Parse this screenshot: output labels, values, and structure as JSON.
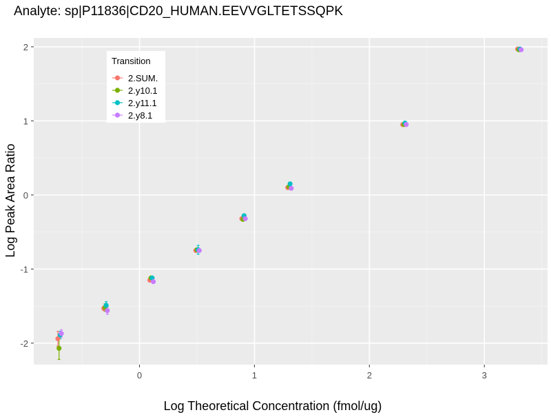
{
  "chart_data": {
    "type": "scatter",
    "title": "Analyte: sp|P11836|CD20_HUMAN.EEVVGLTETSSQPK",
    "xlabel": "Log Theoretical Concentration (fmol/ug)",
    "ylabel": "Log Peak Area Ratio",
    "xlim": [
      -0.92,
      3.55
    ],
    "ylim": [
      -2.29,
      2.12
    ],
    "x_ticks": [
      0,
      1,
      2,
      3
    ],
    "y_ticks": [
      -2,
      -1,
      0,
      1,
      2
    ],
    "x_tick_labels": [
      "0",
      "1",
      "2",
      "3"
    ],
    "y_tick_labels": [
      "-2",
      "-1",
      "0",
      "1",
      "2"
    ],
    "grid": true,
    "legend": {
      "title": "Transition",
      "position": "top-left"
    },
    "series": [
      {
        "name": "2.SUM.",
        "color": "#F8766D",
        "points": [
          {
            "x": -0.71,
            "y": -1.94,
            "err": 0.1
          },
          {
            "x": -0.31,
            "y": -1.53,
            "err": 0.03
          },
          {
            "x": 0.09,
            "y": -1.15,
            "err": 0.02
          },
          {
            "x": 0.49,
            "y": -0.75,
            "err": 0.02
          },
          {
            "x": 0.89,
            "y": -0.32,
            "err": 0.02
          },
          {
            "x": 1.29,
            "y": 0.1,
            "err": 0.02
          },
          {
            "x": 2.29,
            "y": 0.95,
            "err": 0.02
          },
          {
            "x": 3.29,
            "y": 1.97,
            "err": 0.01
          }
        ]
      },
      {
        "name": "2.y10.1",
        "color": "#7CAE00",
        "points": [
          {
            "x": -0.7,
            "y": -2.07,
            "err": 0.15
          },
          {
            "x": -0.3,
            "y": -1.52,
            "err": 0.05
          },
          {
            "x": 0.1,
            "y": -1.12,
            "err": 0.02
          },
          {
            "x": 0.5,
            "y": -0.74,
            "err": 0.02
          },
          {
            "x": 0.9,
            "y": -0.33,
            "err": 0.02
          },
          {
            "x": 1.3,
            "y": 0.11,
            "err": 0.02
          },
          {
            "x": 2.3,
            "y": 0.95,
            "err": 0.02
          },
          {
            "x": 3.3,
            "y": 1.96,
            "err": 0.01
          }
        ]
      },
      {
        "name": "2.y11.1",
        "color": "#00BFC4",
        "points": [
          {
            "x": -0.69,
            "y": -1.89,
            "err": 0.05
          },
          {
            "x": -0.29,
            "y": -1.49,
            "err": 0.05
          },
          {
            "x": 0.11,
            "y": -1.12,
            "err": 0.02
          },
          {
            "x": 0.51,
            "y": -0.74,
            "err": 0.06
          },
          {
            "x": 0.91,
            "y": -0.28,
            "err": 0.02
          },
          {
            "x": 1.31,
            "y": 0.15,
            "err": 0.02
          },
          {
            "x": 2.31,
            "y": 0.97,
            "err": 0.02
          },
          {
            "x": 3.31,
            "y": 1.97,
            "err": 0.01
          }
        ]
      },
      {
        "name": "2.y8.1",
        "color": "#C77CFF",
        "points": [
          {
            "x": -0.68,
            "y": -1.87,
            "err": 0.05
          },
          {
            "x": -0.28,
            "y": -1.56,
            "err": 0.05
          },
          {
            "x": 0.12,
            "y": -1.17,
            "err": 0.02
          },
          {
            "x": 0.52,
            "y": -0.75,
            "err": 0.02
          },
          {
            "x": 0.92,
            "y": -0.32,
            "err": 0.02
          },
          {
            "x": 1.32,
            "y": 0.09,
            "err": 0.02
          },
          {
            "x": 2.32,
            "y": 0.95,
            "err": 0.02
          },
          {
            "x": 3.32,
            "y": 1.96,
            "err": 0.01
          }
        ]
      }
    ]
  }
}
